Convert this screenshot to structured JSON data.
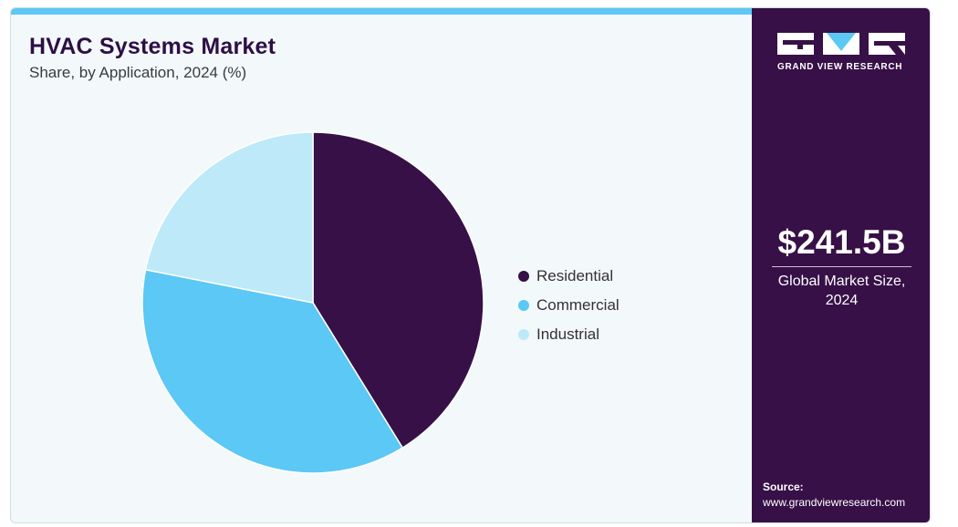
{
  "header": {
    "title": "HVAC Systems Market",
    "subtitle": "Share, by Application, 2024 (%)"
  },
  "chart_data": {
    "type": "pie",
    "title": "HVAC Systems Market",
    "subtitle": "Share, by Application, 2024 (%)",
    "categories": [
      "Residential",
      "Commercial",
      "Industrial"
    ],
    "values": [
      41.2,
      36.9,
      21.9
    ],
    "colors": [
      "#371047",
      "#5bc8f5",
      "#bde9f9"
    ],
    "start_angle_deg": 0,
    "direction": "clockwise",
    "legend_position": "right"
  },
  "sidebar": {
    "brand": "GRAND VIEW RESEARCH",
    "market_size": "$241.5B",
    "market_size_label": "Global Market Size, 2024",
    "source_label": "Source:",
    "source_url": "www.grandviewresearch.com",
    "colors": {
      "background": "#371047",
      "accent": "#5bc8f5"
    }
  }
}
